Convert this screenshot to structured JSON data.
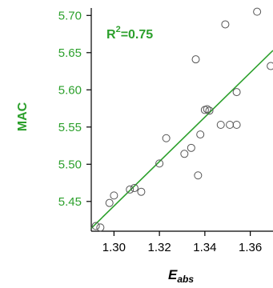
{
  "chart_data": {
    "type": "scatter",
    "xlabel": "E",
    "xlabel_sub": "abs",
    "ylabel": "MAC",
    "annotation": {
      "prefix": "R",
      "sup": "2",
      "suffix": "=0.75"
    },
    "xlim": [
      1.29,
      1.37
    ],
    "ylim": [
      5.41,
      5.71
    ],
    "xticks": [
      1.3,
      1.32,
      1.34,
      1.36
    ],
    "yticks": [
      5.45,
      5.5,
      5.55,
      5.6,
      5.65,
      5.7
    ],
    "grid": false,
    "colors": {
      "fit_line": "#2ca02c",
      "ylabel": "#2ca02c",
      "markers": "#555555"
    },
    "fit_line": {
      "x": [
        1.29,
        1.37
      ],
      "y": [
        5.414,
        5.653
      ]
    },
    "points": [
      {
        "x": 1.292,
        "y": 5.417
      },
      {
        "x": 1.294,
        "y": 5.415
      },
      {
        "x": 1.298,
        "y": 5.448
      },
      {
        "x": 1.3,
        "y": 5.458
      },
      {
        "x": 1.307,
        "y": 5.466
      },
      {
        "x": 1.309,
        "y": 5.468
      },
      {
        "x": 1.312,
        "y": 5.463
      },
      {
        "x": 1.32,
        "y": 5.501
      },
      {
        "x": 1.323,
        "y": 5.535
      },
      {
        "x": 1.331,
        "y": 5.514
      },
      {
        "x": 1.334,
        "y": 5.522
      },
      {
        "x": 1.336,
        "y": 5.641
      },
      {
        "x": 1.337,
        "y": 5.485
      },
      {
        "x": 1.338,
        "y": 5.54
      },
      {
        "x": 1.34,
        "y": 5.573
      },
      {
        "x": 1.341,
        "y": 5.574
      },
      {
        "x": 1.342,
        "y": 5.572
      },
      {
        "x": 1.347,
        "y": 5.553
      },
      {
        "x": 1.349,
        "y": 5.688
      },
      {
        "x": 1.351,
        "y": 5.553
      },
      {
        "x": 1.354,
        "y": 5.553
      },
      {
        "x": 1.354,
        "y": 5.597
      },
      {
        "x": 1.363,
        "y": 5.705
      },
      {
        "x": 1.369,
        "y": 5.632
      }
    ]
  }
}
